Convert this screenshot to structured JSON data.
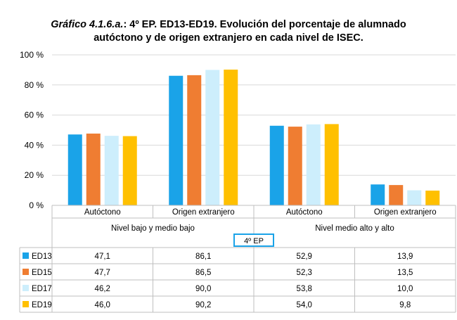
{
  "title": {
    "prefix": "Gráfico 4.1.6.a.",
    "line1": ": 4º EP. ED13-ED19. Evolución del porcentaje de alumnado",
    "line2": "autóctono y de origen extranjero en cada nivel de ISEC."
  },
  "chart_data": {
    "type": "bar",
    "title": "Gráfico 4.1.6.a.: 4º EP. ED13-ED19. Evolución del porcentaje de alumnado autóctono y de origen extranjero en cada nivel de ISEC.",
    "categories": [
      "Autóctono",
      "Origen extranjero",
      "Autóctono",
      "Origen extranjero"
    ],
    "groups": [
      {
        "label": "Nivel bajo y medio bajo",
        "span": [
          0,
          1
        ]
      },
      {
        "label": "Nivel medio alto y alto",
        "span": [
          2,
          3
        ]
      }
    ],
    "badge": "4º EP",
    "series": [
      {
        "name": "ED13",
        "color": "#1aa3e8",
        "values": [
          47.1,
          86.1,
          52.9,
          13.9
        ],
        "labels": [
          "47,1",
          "86,1",
          "52,9",
          "13,9"
        ]
      },
      {
        "name": "ED15",
        "color": "#ef7d32",
        "values": [
          47.7,
          86.5,
          52.3,
          13.5
        ],
        "labels": [
          "47,7",
          "86,5",
          "52,3",
          "13,5"
        ]
      },
      {
        "name": "ED17",
        "color": "#cdeefc",
        "values": [
          46.2,
          90.0,
          53.8,
          10.0
        ],
        "labels": [
          "46,2",
          "90,0",
          "53,8",
          "10,0"
        ]
      },
      {
        "name": "ED19",
        "color": "#ffc000",
        "values": [
          46.0,
          90.2,
          54.0,
          9.8
        ],
        "labels": [
          "46,0",
          "90,2",
          "54,0",
          "9,8"
        ]
      }
    ],
    "ylim": [
      0,
      100
    ],
    "yticks": [
      0,
      20,
      40,
      60,
      80,
      100
    ],
    "ytick_labels": [
      "0 %",
      "20 %",
      "40 %",
      "60 %",
      "80 %",
      "100 %"
    ],
    "grid": true,
    "legend": "data-table-left"
  }
}
